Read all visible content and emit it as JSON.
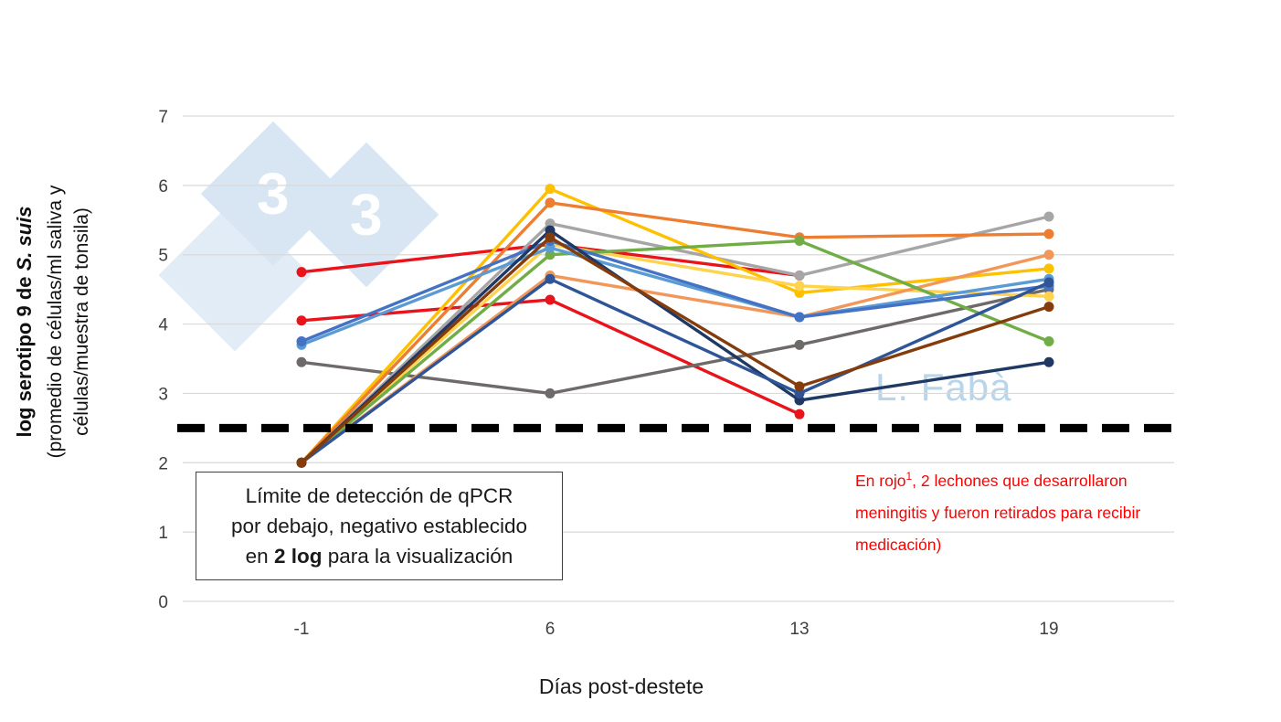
{
  "watermarks": {
    "author": "L. Fabà",
    "logo_digit": "3"
  },
  "y_axis": {
    "title_prefix": "log serotipo 9 de ",
    "title_italic": "S. suis",
    "subtitle_line1": "(promedio de células/ml saliva y",
    "subtitle_line2": "células/muestra de tonsila)"
  },
  "x_axis": {
    "title": "Días post-destete"
  },
  "annotations": {
    "box_line1": "Límite de detección de qPCR",
    "box_line2": "por debajo, negativo establecido",
    "box_line3_pre": "en ",
    "box_line3_bold": "2 log",
    "box_line3_post": " para la visualización",
    "red_note_pre": "En rojo",
    "red_note_sup": "1",
    "red_note_post": ", 2 lechones que desarrollaron meningitis y fueron retirados para recibir medicación)"
  },
  "chart_data": {
    "type": "line",
    "title": "",
    "xlabel": "Días post-destete",
    "ylabel": "log serotipo 9 de S. suis (promedio de células/ml saliva y células/muestra de tonsila)",
    "x_tick_labels": [
      "-1",
      "6",
      "13",
      "19"
    ],
    "y_ticks": [
      0,
      1,
      2,
      3,
      4,
      5,
      6,
      7
    ],
    "ylim": [
      0,
      7
    ],
    "grid": "horizontal",
    "legend": "none",
    "detection_limit": 2.5,
    "series": [
      {
        "name": "lechon-rojo-1",
        "color": "#e8131b",
        "values": [
          4.75,
          5.15,
          4.7,
          null
        ]
      },
      {
        "name": "lechon-rojo-2",
        "color": "#e8131b",
        "values": [
          4.05,
          4.35,
          2.7,
          null
        ]
      },
      {
        "name": "lechon-gris-oscuro",
        "color": "#6e6a6a",
        "values": [
          3.45,
          3.0,
          3.7,
          4.5
        ]
      },
      {
        "name": "lechon-gris-claro",
        "color": "#a6a6a6",
        "values": [
          2.0,
          5.45,
          4.7,
          5.55
        ]
      },
      {
        "name": "lechon-amarillo",
        "color": "#ffc000",
        "values": [
          2.0,
          5.95,
          4.45,
          4.8
        ]
      },
      {
        "name": "lechon-amarillo-claro",
        "color": "#ffd34d",
        "values": [
          2.0,
          5.15,
          4.55,
          4.4
        ]
      },
      {
        "name": "lechon-naranja",
        "color": "#ed7d31",
        "values": [
          2.0,
          5.75,
          5.25,
          5.3
        ]
      },
      {
        "name": "lechon-naranja-claro",
        "color": "#f1975a",
        "values": [
          2.0,
          4.7,
          4.1,
          5.0
        ]
      },
      {
        "name": "lechon-verde",
        "color": "#70ad47",
        "values": [
          2.0,
          5.0,
          5.2,
          3.75
        ]
      },
      {
        "name": "lechon-azul-claro",
        "color": "#5b9bd5",
        "values": [
          3.7,
          5.1,
          4.1,
          4.65
        ]
      },
      {
        "name": "lechon-azul",
        "color": "#4472c4",
        "values": [
          3.75,
          5.2,
          4.1,
          4.55
        ]
      },
      {
        "name": "lechon-azul-marino",
        "color": "#1f3864",
        "values": [
          2.0,
          5.35,
          2.9,
          3.45
        ]
      },
      {
        "name": "lechon-azul-oscuro",
        "color": "#2f5597",
        "values": [
          2.0,
          4.65,
          3.0,
          4.6
        ]
      },
      {
        "name": "lechon-marron",
        "color": "#843c0c",
        "values": [
          2.0,
          5.25,
          3.1,
          4.25
        ]
      }
    ]
  }
}
